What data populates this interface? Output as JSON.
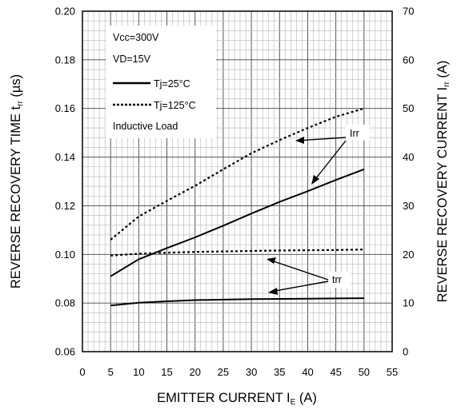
{
  "chart_data": {
    "type": "line",
    "x": [
      5,
      10,
      15,
      20,
      25,
      30,
      35,
      40,
      45,
      50
    ],
    "xlabel": {
      "main": "EMITTER CURRENT I",
      "sub": "E",
      "unit": " (A)"
    },
    "xlim": [
      0,
      55
    ],
    "xticks": [
      "0",
      "5",
      "10",
      "15",
      "20",
      "25",
      "30",
      "35",
      "40",
      "45",
      "50",
      "55"
    ],
    "ylabel_left": {
      "main": "REVERSE RECOVERY TIME t",
      "sub": "rr",
      "unit": " (µs)"
    },
    "ylim_left": [
      0.06,
      0.2
    ],
    "yticks_left": [
      "0.06",
      "0.08",
      "0.10",
      "0.12",
      "0.14",
      "0.16",
      "0.18",
      "0.20"
    ],
    "ylabel_right": {
      "main": "REVERSE RECOVERY CURRENT I",
      "sub": "rr",
      "unit": " (A)"
    },
    "ylim_right": [
      0,
      70
    ],
    "yticks_right": [
      "0",
      "10",
      "20",
      "30",
      "40",
      "50",
      "60",
      "70"
    ],
    "grid": true,
    "legend": {
      "placement": "top-left",
      "conditions": [
        "Vcc=300V",
        "VD=15V"
      ],
      "entries": [
        {
          "label": "Tj=25°C",
          "style": "solid"
        },
        {
          "label": "Tj=125°C",
          "style": "dotted"
        }
      ],
      "note": "Inductive Load"
    },
    "series": [
      {
        "group": "trr",
        "condition": "Tj=25°C",
        "style": "solid",
        "axis": "left",
        "values": [
          0.079,
          0.0801,
          0.0807,
          0.0812,
          0.0814,
          0.0816,
          0.0817,
          0.0818,
          0.0819,
          0.082
        ]
      },
      {
        "group": "trr",
        "condition": "Tj=125°C",
        "style": "dotted",
        "axis": "left",
        "values": [
          0.0995,
          0.1003,
          0.1007,
          0.101,
          0.1012,
          0.1014,
          0.1016,
          0.1017,
          0.1018,
          0.102
        ]
      },
      {
        "group": "Irr",
        "condition": "Tj=25°C",
        "style": "solid",
        "axis": "right",
        "values": [
          15.5,
          19.0,
          21.3,
          23.5,
          25.9,
          28.4,
          30.8,
          33.0,
          35.3,
          37.5
        ]
      },
      {
        "group": "Irr",
        "condition": "Tj=125°C",
        "style": "dotted",
        "axis": "right",
        "values": [
          23.0,
          27.8,
          31.0,
          34.1,
          37.5,
          40.8,
          43.5,
          46.0,
          48.3,
          50.0
        ]
      }
    ],
    "annotations": [
      "Irr",
      "trr"
    ]
  }
}
